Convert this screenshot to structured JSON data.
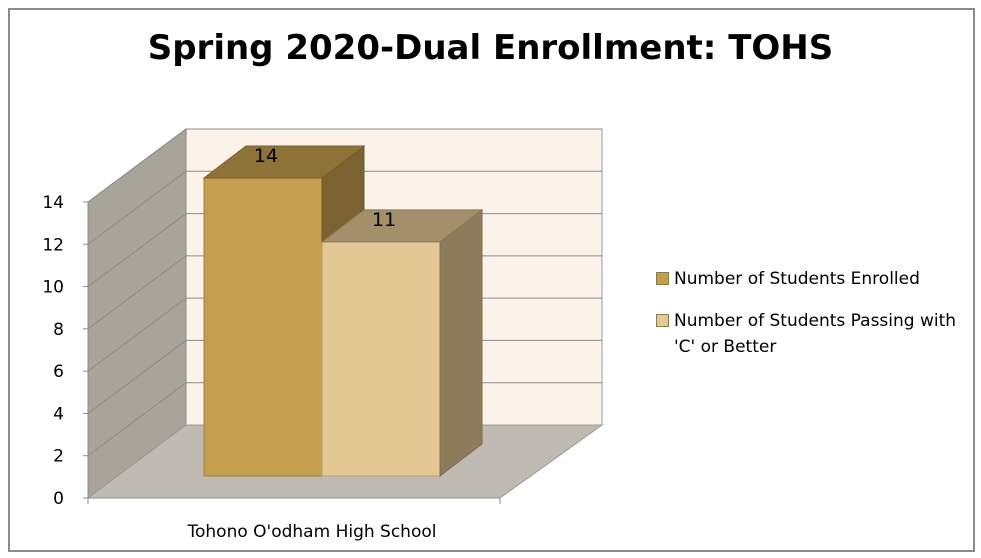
{
  "chart_data": {
    "type": "bar",
    "title": "Spring 2020-Dual Enrollment: TOHS",
    "categories": [
      "Tohono O'odham High School"
    ],
    "series": [
      {
        "name": "Number of Students Enrolled",
        "values": [
          14
        ],
        "color": "#c4a04e"
      },
      {
        "name": "Number of Students Passing with 'C' or Better",
        "values": [
          11
        ],
        "color": "#e3c894"
      }
    ],
    "data_labels": [
      "14",
      "11"
    ],
    "ylim": [
      0,
      14
    ],
    "y_ticks": [
      0,
      2,
      4,
      6,
      8,
      10,
      12,
      14
    ],
    "grid": true,
    "legend": "right",
    "three_d": true,
    "colors": {
      "back_wall": "#fbf3ea",
      "side_wall": "#a9a49a",
      "floor": "#c0bbb2"
    }
  }
}
